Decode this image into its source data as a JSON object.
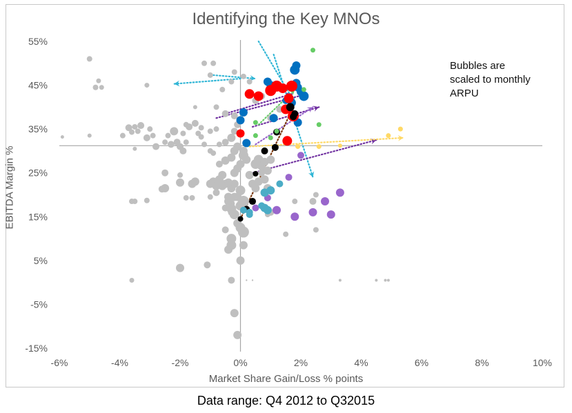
{
  "caption": "Data range: Q4 2012 to Q32015",
  "chart_data": {
    "type": "scatter",
    "title": "Identifying the Key MNOs",
    "xlabel": "Market Share Gain/Loss % points",
    "ylabel": "EBITDA Margin %",
    "xlim": [
      -6,
      10
    ],
    "ylim": [
      -15,
      55
    ],
    "x_ticks": [
      -6,
      -4,
      -2,
      0,
      2,
      4,
      6,
      8,
      10
    ],
    "y_ticks": [
      -15,
      -5,
      5,
      15,
      25,
      35,
      45,
      55
    ],
    "x_tick_labels": [
      "-6%",
      "-4%",
      "-2%",
      "0%",
      "2%",
      "4%",
      "6%",
      "8%",
      "10%"
    ],
    "y_tick_labels": [
      "-15%",
      "-5%",
      "5%",
      "15%",
      "25%",
      "35%",
      "45%",
      "55%"
    ],
    "reference_lines": {
      "x": 0,
      "y": 31.2
    },
    "annotation": "Bubbles are scaled to monthly ARPU",
    "colors": {
      "grey": "#bfbfbf",
      "blue": "#0070c0",
      "red": "#ff0000",
      "black": "#000000",
      "purple": "#9966cc",
      "dark_purple": "#7030a0",
      "teal": "#4bacc6",
      "light_blue": "#31b6d6",
      "yellow": "#ffd966",
      "green": "#66cc66",
      "brown": "#7b3a10",
      "axis": "#a6a6a6"
    },
    "series": [
      {
        "color": "grey",
        "points": [
          [
            -5.0,
            51,
            4
          ],
          [
            -4.8,
            44.5,
            4
          ],
          [
            -4.7,
            46,
            3.5
          ],
          [
            -4.6,
            44.5,
            3.5
          ],
          [
            -3.9,
            33.5,
            4
          ],
          [
            -3.7,
            35.3,
            5
          ],
          [
            -3.6,
            34.3,
            4
          ],
          [
            -3.5,
            35.5,
            4
          ],
          [
            -3.4,
            34.5,
            4
          ],
          [
            -3.3,
            35.8,
            5
          ],
          [
            -3.1,
            33,
            5
          ],
          [
            -3.0,
            35,
            4
          ],
          [
            -2.9,
            33.5,
            4
          ],
          [
            -3.1,
            45,
            3.5
          ],
          [
            -2.8,
            31,
            5
          ],
          [
            -2.5,
            32,
            4
          ],
          [
            -2.4,
            33.5,
            4
          ],
          [
            -2.3,
            31.5,
            5
          ],
          [
            -2.2,
            34.5,
            6
          ],
          [
            -2.1,
            32,
            5
          ],
          [
            -2.0,
            31,
            5
          ],
          [
            -1.9,
            30,
            5
          ],
          [
            -1.9,
            34,
            4
          ],
          [
            -1.8,
            32,
            4
          ],
          [
            -1.8,
            36,
            4
          ],
          [
            -1.7,
            35.5,
            5
          ],
          [
            -1.5,
            36.3,
            5
          ],
          [
            -1.4,
            34,
            4
          ],
          [
            -1.3,
            33.2,
            4
          ],
          [
            -1.2,
            31.5,
            4
          ],
          [
            -1.0,
            34.5,
            4
          ],
          [
            -1.5,
            40,
            3
          ],
          [
            -1.3,
            35.3,
            4
          ],
          [
            -1.0,
            30,
            4
          ],
          [
            -0.8,
            35,
            4
          ],
          [
            -0.7,
            31.5,
            4
          ],
          [
            -0.9,
            29.5,
            4
          ],
          [
            -2.5,
            25,
            5
          ],
          [
            -2.5,
            21.5,
            6
          ],
          [
            -2.6,
            21.3,
            5
          ],
          [
            -2.0,
            22.8,
            6
          ],
          [
            -1.6,
            22.5,
            6
          ],
          [
            -1.5,
            23,
            6
          ],
          [
            -1.0,
            22.5,
            6
          ],
          [
            -0.9,
            23,
            6
          ],
          [
            -0.6,
            24.5,
            6
          ],
          [
            -0.8,
            22,
            6
          ],
          [
            -0.6,
            22,
            6
          ],
          [
            -0.5,
            22.5,
            6
          ],
          [
            -0.4,
            19.5,
            6
          ],
          [
            -0.3,
            21.5,
            6
          ],
          [
            -0.2,
            19.5,
            6
          ],
          [
            -0.2,
            22.5,
            6
          ],
          [
            -0.1,
            19.5,
            6
          ],
          [
            -0.8,
            20.5,
            5
          ],
          [
            -0.7,
            23.5,
            6
          ],
          [
            -0.4,
            22.8,
            6
          ],
          [
            -1.0,
            19.5,
            4
          ],
          [
            -0.5,
            17,
            5
          ],
          [
            -0.3,
            18,
            5
          ],
          [
            -0.2,
            25,
            6
          ],
          [
            -0.1,
            26,
            6
          ],
          [
            0.0,
            27,
            6
          ],
          [
            0.1,
            29,
            7
          ],
          [
            0.1,
            30,
            6
          ],
          [
            0.2,
            28,
            6
          ],
          [
            0.3,
            24.5,
            6
          ],
          [
            0.4,
            22.5,
            6
          ],
          [
            0.5,
            27,
            7
          ],
          [
            0.6,
            28,
            7
          ],
          [
            0.7,
            26.5,
            6
          ],
          [
            0.7,
            25,
            5
          ],
          [
            0.8,
            27.5,
            6
          ],
          [
            0.9,
            25.5,
            6
          ],
          [
            1.0,
            28,
            6
          ],
          [
            0.6,
            23,
            6
          ],
          [
            0.8,
            23.5,
            6
          ],
          [
            0.5,
            21.5,
            6
          ],
          [
            0.9,
            21.5,
            6
          ],
          [
            -0.7,
            27,
            5
          ],
          [
            -0.5,
            27.8,
            6
          ],
          [
            -0.3,
            28.5,
            6
          ],
          [
            -0.2,
            30,
            6
          ],
          [
            -0.1,
            31,
            6
          ],
          [
            -0.5,
            32,
            5
          ],
          [
            -0.3,
            33,
            6
          ],
          [
            -0.2,
            34.5,
            5
          ],
          [
            -0.1,
            36,
            5
          ],
          [
            -0.2,
            38,
            5
          ],
          [
            -0.5,
            38.5,
            5
          ],
          [
            -0.8,
            40,
            4
          ],
          [
            -0.6,
            44,
            4
          ],
          [
            -0.3,
            45.8,
            4
          ],
          [
            -0.2,
            48,
            4
          ],
          [
            0.1,
            47,
            4
          ],
          [
            -1.0,
            47.3,
            4
          ],
          [
            -1.2,
            50,
            4
          ],
          [
            -0.9,
            50,
            4
          ],
          [
            0.3,
            45.8,
            4
          ],
          [
            0.5,
            41.5,
            5
          ],
          [
            0.7,
            42.5,
            5
          ],
          [
            1.0,
            37.5,
            5
          ],
          [
            1.3,
            39.5,
            5
          ],
          [
            -3.5,
            18.5,
            4
          ],
          [
            -3.6,
            18.5,
            4
          ],
          [
            -3.1,
            18.7,
            4
          ],
          [
            -2.0,
            24.5,
            4
          ],
          [
            -1.6,
            19.3,
            4
          ],
          [
            -1.8,
            19.3,
            4
          ],
          [
            -0.3,
            16,
            5
          ],
          [
            -0.4,
            18.5,
            6
          ],
          [
            -0.3,
            16.8,
            7
          ],
          [
            -0.2,
            15.5,
            7
          ],
          [
            0.0,
            17.5,
            7
          ],
          [
            0.1,
            18.5,
            8
          ],
          [
            0.0,
            21,
            7
          ],
          [
            -0.1,
            13.5,
            6
          ],
          [
            0.0,
            12.5,
            7
          ],
          [
            0.1,
            11.5,
            8
          ],
          [
            -0.5,
            12,
            5
          ],
          [
            -0.3,
            10,
            7
          ],
          [
            -0.3,
            8.5,
            7
          ],
          [
            0.1,
            8.5,
            6
          ],
          [
            -0.4,
            7.5,
            6
          ],
          [
            0.0,
            5,
            6
          ],
          [
            -1.1,
            4,
            5
          ],
          [
            -2.0,
            3.3,
            6
          ],
          [
            -0.3,
            0.5,
            5
          ],
          [
            -3.6,
            0.5,
            3.5
          ],
          [
            0.2,
            0.5,
            1.2
          ],
          [
            0.4,
            0.5,
            1.2
          ],
          [
            3.3,
            0.5,
            2
          ],
          [
            4.5,
            0.5,
            2
          ],
          [
            4.8,
            0.5,
            2
          ],
          [
            4.9,
            0.5,
            2
          ],
          [
            -0.2,
            -7,
            6
          ],
          [
            -0.1,
            -12,
            6
          ],
          [
            2.5,
            20,
            4
          ],
          [
            2.4,
            18.5,
            5
          ],
          [
            2.5,
            12,
            4
          ],
          [
            1.5,
            11,
            4
          ],
          [
            1.0,
            16,
            5
          ],
          [
            1.8,
            18.5,
            4
          ],
          [
            -5.0,
            33.5,
            3
          ],
          [
            -5.9,
            33.2,
            2.5
          ],
          [
            -3.5,
            30.5,
            3
          ],
          [
            0.9,
            15.5,
            4
          ]
        ]
      },
      {
        "color": "blue",
        "points": [
          [
            1.85,
            49.5,
            6
          ],
          [
            1.8,
            48.5,
            7
          ],
          [
            1.85,
            45.5,
            6
          ],
          [
            1.9,
            44.5,
            6
          ],
          [
            2.0,
            43.5,
            6
          ],
          [
            2.1,
            42.5,
            7
          ],
          [
            1.7,
            41,
            6
          ],
          [
            1.5,
            41.5,
            5
          ],
          [
            1.0,
            45,
            6
          ],
          [
            0.9,
            45.8,
            6
          ],
          [
            1.1,
            37.5,
            6
          ],
          [
            0.1,
            38.8,
            6
          ],
          [
            0.0,
            37,
            6
          ],
          [
            1.9,
            36.5,
            6
          ],
          [
            0.2,
            31.8,
            6
          ]
        ]
      },
      {
        "color": "red",
        "points": [
          [
            0.3,
            43,
            7
          ],
          [
            0.6,
            42.5,
            7
          ],
          [
            1.0,
            43.8,
            8
          ],
          [
            1.2,
            44.8,
            8
          ],
          [
            1.4,
            44.3,
            7
          ],
          [
            1.7,
            44.8,
            8
          ],
          [
            1.6,
            42,
            7
          ],
          [
            1.5,
            39.5,
            7
          ],
          [
            1.75,
            38,
            8
          ],
          [
            0.0,
            34,
            6
          ],
          [
            1.55,
            32.3,
            7
          ]
        ]
      },
      {
        "color": "black",
        "points": [
          [
            1.65,
            40,
            6
          ],
          [
            1.8,
            38.5,
            5
          ],
          [
            1.75,
            37.8,
            5
          ],
          [
            1.2,
            34.3,
            5
          ],
          [
            1.15,
            30.8,
            5
          ],
          [
            0.8,
            30,
            5
          ],
          [
            0.4,
            18.5,
            5
          ],
          [
            0.2,
            16.7,
            5
          ],
          [
            0.5,
            24.8,
            4
          ],
          [
            0.0,
            14.5,
            4
          ]
        ]
      },
      {
        "color": "purple",
        "points": [
          [
            3.3,
            20.5,
            6
          ],
          [
            2.8,
            18.5,
            6
          ],
          [
            3.0,
            15.5,
            6
          ],
          [
            2.4,
            16,
            6
          ],
          [
            1.8,
            15,
            6
          ],
          [
            1.2,
            16.5,
            6
          ],
          [
            0.9,
            19.3,
            5
          ],
          [
            1.6,
            24,
            5
          ],
          [
            2.0,
            29,
            5
          ],
          [
            0.5,
            17,
            5
          ]
        ]
      },
      {
        "color": "teal",
        "points": [
          [
            0.8,
            20.5,
            6
          ],
          [
            1.0,
            21,
            6
          ],
          [
            1.3,
            22.5,
            5
          ],
          [
            0.8,
            17,
            6
          ],
          [
            0.9,
            16.5,
            6
          ],
          [
            0.7,
            17.5,
            5
          ],
          [
            0.3,
            16,
            5
          ],
          [
            0.3,
            15.5,
            5
          ],
          [
            0.1,
            16.5,
            5
          ]
        ]
      },
      {
        "color": "green",
        "points": [
          [
            2.4,
            53,
            3.5
          ],
          [
            2.6,
            36,
            3.5
          ],
          [
            0.5,
            33.5,
            3.5
          ],
          [
            1.0,
            33,
            3.5
          ],
          [
            1.2,
            34.5,
            3.5
          ],
          [
            0.5,
            36.5,
            3.5
          ],
          [
            2.1,
            44,
            3.5
          ]
        ]
      },
      {
        "color": "yellow",
        "points": [
          [
            4.9,
            33.5,
            3.5
          ],
          [
            5.3,
            35,
            3.5
          ],
          [
            2.6,
            31,
            3.5
          ],
          [
            1.9,
            31,
            3.5
          ],
          [
            3.3,
            31.2,
            3
          ]
        ]
      }
    ],
    "arrows": [
      {
        "color": "light_blue",
        "from": [
          0.0,
          46.5
        ],
        "to": [
          -2.2,
          45.3
        ]
      },
      {
        "color": "light_blue",
        "from": [
          -0.9,
          47.3
        ],
        "to": [
          0.5,
          46.5
        ]
      },
      {
        "color": "light_blue",
        "from": [
          0.6,
          55
        ],
        "to": [
          1.8,
          41
        ]
      },
      {
        "color": "light_blue",
        "from": [
          1.1,
          52
        ],
        "to": [
          2.4,
          24
        ]
      },
      {
        "color": "dark_purple",
        "from": [
          -0.8,
          37.5
        ],
        "to": [
          2.2,
          43
        ]
      },
      {
        "color": "dark_purple",
        "from": [
          -0.5,
          38.5
        ],
        "to": [
          1.7,
          43
        ]
      },
      {
        "color": "dark_purple",
        "from": [
          0.4,
          35.5
        ],
        "to": [
          2.6,
          40
        ]
      },
      {
        "color": "dark_purple",
        "from": [
          0.3,
          24.8
        ],
        "to": [
          4.5,
          32.5
        ]
      },
      {
        "color": "purple",
        "from": [
          0.5,
          31.5
        ],
        "to": [
          2.4,
          40
        ]
      },
      {
        "color": "yellow",
        "from": [
          0.3,
          31
        ],
        "to": [
          5.4,
          33
        ]
      },
      {
        "color": "brown",
        "from": [
          0.0,
          14.5
        ],
        "to": [
          1.75,
          40
        ]
      },
      {
        "color": "green",
        "from": [
          0.6,
          36
        ],
        "to": [
          1.8,
          44
        ]
      }
    ]
  }
}
